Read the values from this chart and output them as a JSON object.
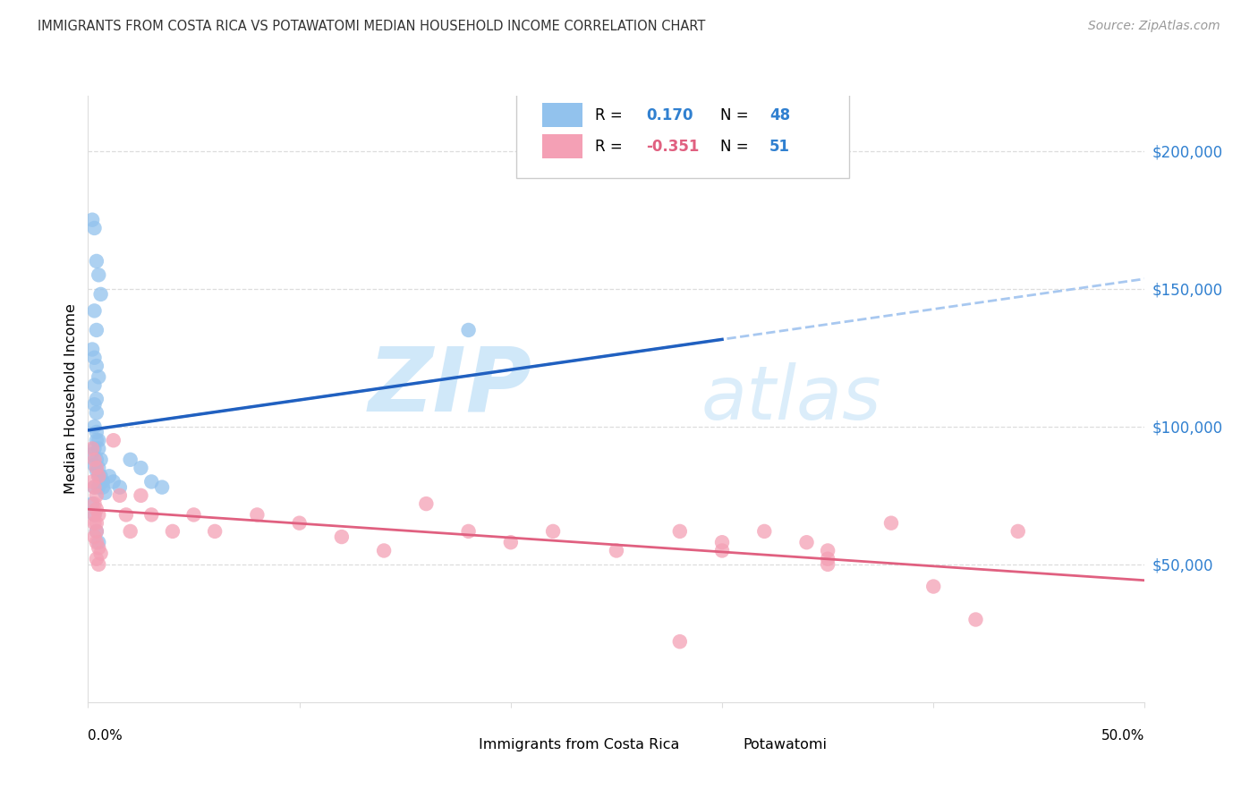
{
  "title": "IMMIGRANTS FROM COSTA RICA VS POTAWATOMI MEDIAN HOUSEHOLD INCOME CORRELATION CHART",
  "source": "Source: ZipAtlas.com",
  "ylabel": "Median Household Income",
  "xlim": [
    0.0,
    0.5
  ],
  "ylim": [
    0,
    220000
  ],
  "yticks": [
    50000,
    100000,
    150000,
    200000
  ],
  "ytick_labels": [
    "$50,000",
    "$100,000",
    "$150,000",
    "$200,000"
  ],
  "xtick_vals": [
    0.0,
    0.1,
    0.2,
    0.3,
    0.4,
    0.5
  ],
  "xtick_labels": [
    "0.0%",
    "",
    "",
    "",
    "",
    "50.0%"
  ],
  "watermark_zip": "ZIP",
  "watermark_atlas": "atlas",
  "label_blue": "Immigrants from Costa Rica",
  "label_pink": "Potawatomi",
  "color_blue": "#92C2ED",
  "color_pink": "#F4A0B5",
  "line_blue_solid": "#2060C0",
  "line_blue_dashed": "#A8C8F0",
  "line_pink": "#E06080",
  "r_blue_color": "#3080D0",
  "r_pink_color": "#E06080",
  "n_color": "#3080D0",
  "grid_color": "#DDDDDD",
  "title_color": "#333333",
  "source_color": "#999999",
  "blue_x": [
    0.002,
    0.003,
    0.004,
    0.005,
    0.006,
    0.003,
    0.004,
    0.002,
    0.003,
    0.004,
    0.005,
    0.003,
    0.004,
    0.003,
    0.004,
    0.003,
    0.004,
    0.005,
    0.003,
    0.002,
    0.004,
    0.003,
    0.004,
    0.005,
    0.006,
    0.003,
    0.004,
    0.005,
    0.006,
    0.005,
    0.006,
    0.007,
    0.005,
    0.006,
    0.007,
    0.008,
    0.01,
    0.012,
    0.015,
    0.02,
    0.025,
    0.03,
    0.035,
    0.18,
    0.002,
    0.003,
    0.004,
    0.005
  ],
  "blue_y": [
    175000,
    172000,
    160000,
    155000,
    148000,
    142000,
    135000,
    128000,
    125000,
    122000,
    118000,
    115000,
    110000,
    108000,
    105000,
    100000,
    98000,
    95000,
    92000,
    90000,
    88000,
    86000,
    84000,
    82000,
    80000,
    78000,
    95000,
    92000,
    88000,
    85000,
    82000,
    80000,
    78000,
    80000,
    78000,
    76000,
    82000,
    80000,
    78000,
    88000,
    85000,
    80000,
    78000,
    135000,
    72000,
    68000,
    62000,
    58000
  ],
  "pink_x": [
    0.002,
    0.003,
    0.004,
    0.005,
    0.002,
    0.003,
    0.004,
    0.003,
    0.004,
    0.005,
    0.003,
    0.004,
    0.003,
    0.004,
    0.005,
    0.006,
    0.004,
    0.005,
    0.003,
    0.004,
    0.012,
    0.015,
    0.018,
    0.02,
    0.025,
    0.03,
    0.04,
    0.05,
    0.06,
    0.08,
    0.1,
    0.12,
    0.14,
    0.16,
    0.18,
    0.2,
    0.22,
    0.25,
    0.28,
    0.3,
    0.32,
    0.34,
    0.35,
    0.38,
    0.4,
    0.42,
    0.44,
    0.35,
    0.3,
    0.28,
    0.35
  ],
  "pink_y": [
    92000,
    88000,
    85000,
    82000,
    80000,
    78000,
    75000,
    72000,
    70000,
    68000,
    65000,
    62000,
    60000,
    58000,
    56000,
    54000,
    52000,
    50000,
    68000,
    65000,
    95000,
    75000,
    68000,
    62000,
    75000,
    68000,
    62000,
    68000,
    62000,
    68000,
    65000,
    60000,
    55000,
    72000,
    62000,
    58000,
    62000,
    55000,
    62000,
    55000,
    62000,
    58000,
    52000,
    65000,
    42000,
    30000,
    62000,
    50000,
    58000,
    22000,
    55000
  ]
}
